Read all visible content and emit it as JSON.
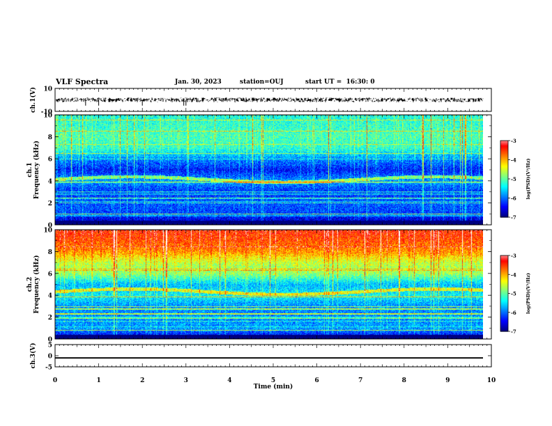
{
  "header": {
    "title": "VLF Spectra",
    "date": "Jan. 30, 2023",
    "station": "station=OUJ",
    "start": "start UT =  16:30: 0"
  },
  "chart_data": [
    {
      "type": "line",
      "panel": "waveform-ch1",
      "ylabel": "ch.1(V)",
      "ylim": [
        -10,
        10
      ],
      "yticks": [
        "10",
        "-10"
      ],
      "xlim": [
        0,
        10
      ],
      "series": [
        {
          "baseline": 0,
          "amplitude": 2,
          "spikes_at_min": [
            0.7,
            1.0,
            2.0,
            2.95,
            3.0
          ]
        }
      ]
    },
    {
      "type": "heatmap",
      "panel": "spectrogram-ch1",
      "ylabel": "ch.1\nFrequency (kHz)",
      "ylim": [
        0,
        10
      ],
      "yticks": [
        "0",
        "2",
        "4",
        "6",
        "8",
        "10"
      ],
      "xlim": [
        0,
        9.8
      ],
      "colorbar": {
        "label": "log(PSD)(V²/Hz)",
        "range": [
          -7,
          -3
        ],
        "ticks": [
          "-3",
          "-4",
          "-5",
          "-6",
          "-7"
        ]
      },
      "level_profile": [
        [
          0,
          -6.9
        ],
        [
          0.5,
          -6.6
        ],
        [
          1,
          -6.2
        ],
        [
          2,
          -6.1
        ],
        [
          3,
          -6.3
        ],
        [
          4,
          -5.8
        ],
        [
          5,
          -6.4
        ],
        [
          6,
          -5.9
        ],
        [
          7,
          -5.2
        ],
        [
          8,
          -5.1
        ],
        [
          9,
          -5.2
        ],
        [
          10,
          -5.3
        ]
      ],
      "emission_band_khz": [
        4.0,
        4.6
      ]
    },
    {
      "type": "heatmap",
      "panel": "spectrogram-ch2",
      "ylabel": "ch.2\nFrequency (kHz)",
      "ylim": [
        0,
        10
      ],
      "yticks": [
        "0",
        "2",
        "4",
        "6",
        "8",
        "10"
      ],
      "xlim": [
        0,
        9.8
      ],
      "colorbar": {
        "label": "log(PSD)(V²/Hz)",
        "range": [
          -7,
          -3
        ],
        "ticks": [
          "-3",
          "-4",
          "-5",
          "-6",
          "-7"
        ]
      },
      "level_profile": [
        [
          0,
          -6.7
        ],
        [
          0.5,
          -6.3
        ],
        [
          1,
          -5.8
        ],
        [
          2,
          -5.9
        ],
        [
          3,
          -5.9
        ],
        [
          4,
          -5.4
        ],
        [
          5,
          -5.7
        ],
        [
          6,
          -4.8
        ],
        [
          7,
          -4.6
        ],
        [
          8,
          -3.9
        ],
        [
          9,
          -3.6
        ],
        [
          10,
          -3.4
        ]
      ],
      "emission_band_khz": [
        4.2,
        4.8
      ]
    },
    {
      "type": "line",
      "panel": "waveform-ch3",
      "ylabel": "ch.3(V)",
      "ylim": [
        -5,
        5
      ],
      "yticks": [
        "5",
        "0",
        "-5"
      ],
      "xlim": [
        0,
        10
      ],
      "series": [
        {
          "baseline": -1,
          "amplitude": 0.3
        }
      ]
    }
  ],
  "xaxis": {
    "label": "Time (min)",
    "ticks": [
      "0",
      "1",
      "2",
      "3",
      "4",
      "5",
      "6",
      "7",
      "8",
      "9",
      "10"
    ]
  },
  "colors": {
    "colormap": [
      "#00007f",
      "#0000ff",
      "#007fff",
      "#00ffff",
      "#7fff7f",
      "#ffff00",
      "#ff7f00",
      "#ff0000",
      "#ffffff"
    ],
    "trace": "#000000",
    "axis": "#000000"
  }
}
